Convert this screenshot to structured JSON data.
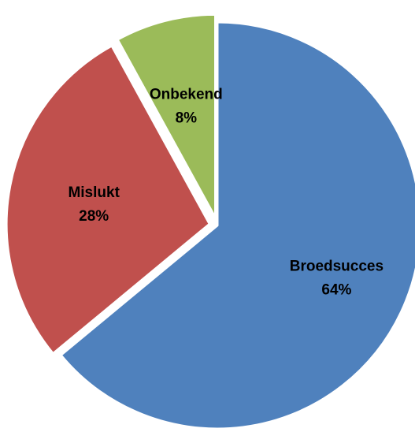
{
  "chart_data": {
    "type": "pie",
    "title": "",
    "slices": [
      {
        "label": "Broedsucces",
        "value": 64,
        "value_label": "64%",
        "color": "#4f81bd",
        "exploded": false
      },
      {
        "label": "Mislukt",
        "value": 28,
        "value_label": "28%",
        "color": "#c0504d",
        "exploded": true
      },
      {
        "label": "Onbekend",
        "value": 8,
        "value_label": "8%",
        "color": "#9bbb59",
        "exploded": true
      }
    ],
    "start_angle_deg": 0,
    "direction": "clockwise",
    "legend": "none",
    "slice_border_color": "#ffffff"
  }
}
